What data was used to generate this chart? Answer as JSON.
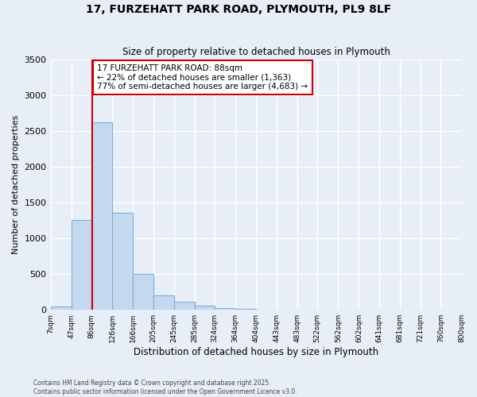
{
  "title": "17, FURZEHATT PARK ROAD, PLYMOUTH, PL9 8LF",
  "subtitle": "Size of property relative to detached houses in Plymouth",
  "xlabel": "Distribution of detached houses by size in Plymouth",
  "ylabel": "Number of detached properties",
  "bar_color": "#c5d9ee",
  "bar_edge_color": "#7aafe0",
  "bins": [
    7,
    47,
    86,
    126,
    166,
    205,
    245,
    285,
    324,
    364,
    404,
    443,
    483,
    522,
    562,
    602,
    641,
    681,
    721,
    760,
    800
  ],
  "bin_labels": [
    "7sqm",
    "47sqm",
    "86sqm",
    "126sqm",
    "166sqm",
    "205sqm",
    "245sqm",
    "285sqm",
    "324sqm",
    "364sqm",
    "404sqm",
    "443sqm",
    "483sqm",
    "522sqm",
    "562sqm",
    "602sqm",
    "641sqm",
    "681sqm",
    "721sqm",
    "760sqm",
    "800sqm"
  ],
  "values": [
    50,
    1250,
    2620,
    1360,
    500,
    200,
    110,
    55,
    20,
    10,
    5,
    3,
    2,
    1,
    0,
    0,
    0,
    0,
    0,
    0
  ],
  "property_line_x": 88,
  "vline_color": "#cc0000",
  "annotation_box_color": "#cc0000",
  "annotation_text_line1": "17 FURZEHATT PARK ROAD: 88sqm",
  "annotation_text_line2": "← 22% of detached houses are smaller (1,363)",
  "annotation_text_line3": "77% of semi-detached houses are larger (4,683) →",
  "ylim": [
    0,
    3500
  ],
  "yticks": [
    0,
    500,
    1000,
    1500,
    2000,
    2500,
    3000,
    3500
  ],
  "background_color": "#e8eef8",
  "grid_color": "#ffffff",
  "footer_line1": "Contains HM Land Registry data © Crown copyright and database right 2025.",
  "footer_line2": "Contains public sector information licensed under the Open Government Licence v3.0."
}
